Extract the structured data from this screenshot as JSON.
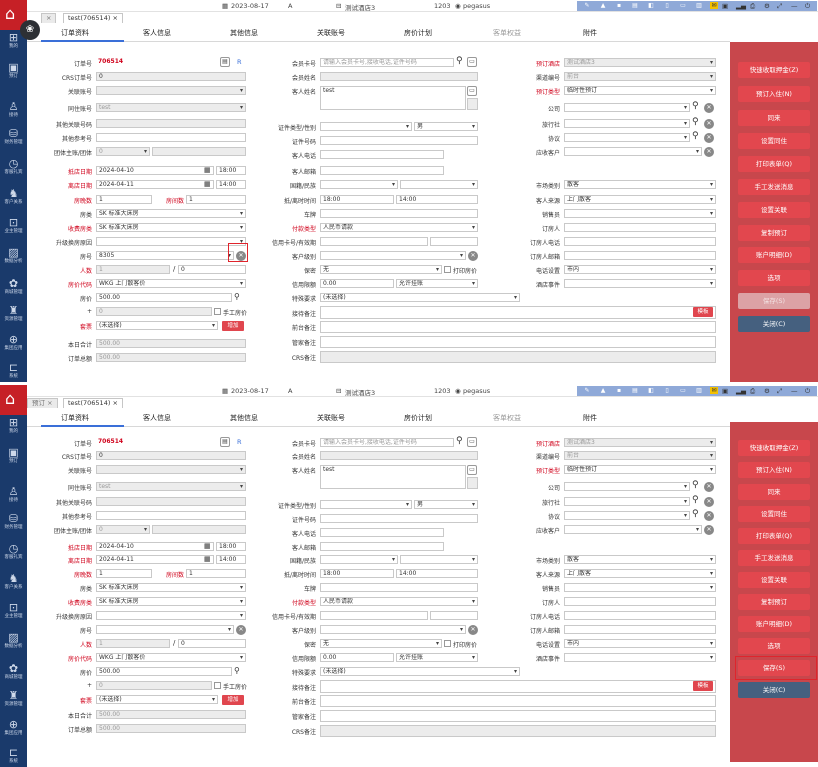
{
  "topbar": {
    "date": "2023-08-17",
    "shift": "A",
    "hotel_name": "测试酒店3",
    "room": "1203",
    "user": "pegasus",
    "panel2_hotel_name": "测试酒店3"
  },
  "sidebar": {
    "items": [
      "我的",
      "预订",
      "接待",
      "财务管理",
      "客服礼宾",
      "客户关系",
      "业主管理",
      "数据分析",
      "商城管理",
      "资源管理",
      "集团应用",
      "系统"
    ]
  },
  "tabs": {
    "first": "预订",
    "second": "test(706514)",
    "close": "×"
  },
  "sections": [
    "订单资料",
    "客人信息",
    "其他信息",
    "关联账号",
    "房价计划",
    "客单权益",
    "附件"
  ],
  "form": {
    "labels": {
      "order_no": "订单号",
      "crs_no": "CRS订单号",
      "related_no": "关联账号",
      "colleague_no": "同住账号",
      "other_ref": "其他关联号码",
      "other_ref2": "其他参考号",
      "group_host": "团体主账/团体",
      "arrive": "抵店日期",
      "depart": "离店日期",
      "nights": "房晚数",
      "rooms": "房间数",
      "room_type": "房类",
      "charge_room_type": "收费房类",
      "upgrade_reason": "升级换房原因",
      "room_no": "房号",
      "adults": "人数",
      "rate_code": "房价代码",
      "rate": "房价",
      "pkg_plus": "+",
      "package": "套票",
      "day_total": "本日合计",
      "order_total": "订单总额",
      "member_card": "会员卡号",
      "member_name": "会员姓名",
      "guest_name": "客人姓名",
      "id_type": "证件类型/性别",
      "id_no": "证件号码",
      "guest_phone": "客人电话",
      "guest_email": "客人邮箱",
      "nation": "国籍/民族",
      "arrive_time": "抵/离时时间",
      "car_no": "车牌",
      "pay_type": "付款类型",
      "card_exp": "信用卡号/有效期",
      "guest_level": "客户级别",
      "guarantee": "保密",
      "credit_limit": "信用限额",
      "special_req": "特殊要求",
      "op_note": "接待备注",
      "front_note": "前台备注",
      "hk_note": "管家备注",
      "crs_note": "CRS备注",
      "book_hotel": "预订酒店",
      "channel": "渠道编号",
      "book_type": "预订类型",
      "company": "公司",
      "agent": "旅行社",
      "source": "协议",
      "sales_account": "应收客户",
      "market": "市场类别",
      "source2": "客人来源",
      "sales": "销售员",
      "booker": "订房人",
      "booker_phone": "订房人电话",
      "booker_email": "订房人邮箱",
      "phone_setup": "电话设置",
      "hotel_events": "酒店事件",
      "manual_rate": "手工房价",
      "print_rate": "打印房价",
      "nights_label": "房间数"
    },
    "values": {
      "order_no": "706514",
      "crs_no": "0",
      "colleague_no": "test",
      "arrive_date": "2024-04-10",
      "arrive_time": "18:00",
      "depart_date": "2024-04-11",
      "depart_time": "14:00",
      "nights": "1",
      "rooms": "1",
      "room_type": "SK 标准大床房",
      "charge_room_type": "SK 标准大床房",
      "room_no_p1": "8305",
      "adults": "1",
      "children": "0",
      "rate_code": "WKG 上门散客价",
      "rate": "500.00",
      "pkg_plus": "0",
      "package": "(未选择)",
      "day_total": "500.00",
      "order_total": "500.00",
      "member_card_ph": "请输入会员卡号,接收电话,证件号码",
      "guest_name": "test",
      "sex": "男",
      "arrive_t": "18:00",
      "depart_t": "14:00",
      "pay_type": "人民币请款",
      "guarantee": "无",
      "credit_limit": "0.00",
      "credit_type": "允许挂账",
      "special_req": "(未选择)",
      "book_hotel": "测试酒店3",
      "channel": "前台",
      "book_type": "临时性预订",
      "market": "散客",
      "source2": "上门散客",
      "phone_setup": "市内",
      "group_zero": "0"
    },
    "add_btn": "增加",
    "edit_btn": "模板",
    "r_letter": "R"
  },
  "actions": {
    "buttons": [
      "快速收取押金(Z)",
      "预订入住(N)",
      "同来",
      "设置同住",
      "打印表单(Q)",
      "手工发送消息",
      "设置关联",
      "复制预订",
      "账户明细(D)",
      "选项",
      "保存(S)",
      "关闭(C)"
    ],
    "options_arrow": "—"
  }
}
